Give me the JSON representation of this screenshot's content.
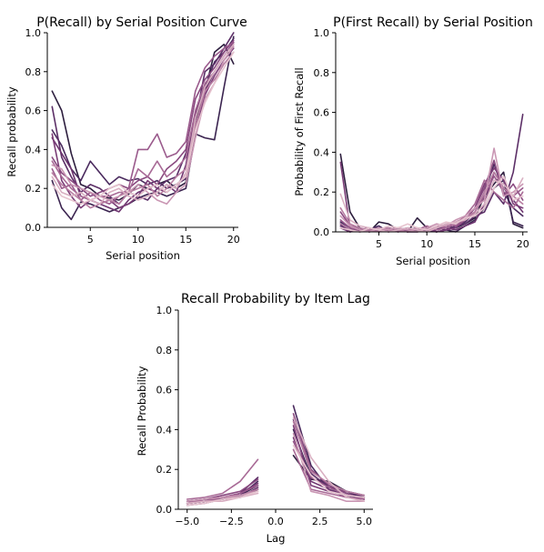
{
  "chart_data": [
    {
      "type": "line",
      "title": "P(Recall) by Serial Position Curve",
      "xlabel": "Serial position",
      "ylabel": "Recall probability",
      "xlim": [
        0.5,
        20.5
      ],
      "ylim": [
        0,
        1
      ],
      "xticks": [
        5,
        10,
        15,
        20
      ],
      "yticks": [
        0.0,
        0.2,
        0.4,
        0.6,
        0.8,
        1.0
      ],
      "x": [
        1,
        2,
        3,
        4,
        5,
        6,
        7,
        8,
        9,
        10,
        11,
        12,
        13,
        14,
        15,
        16,
        17,
        18,
        19,
        20
      ],
      "series": [
        {
          "color": "#2d1e3e",
          "values": [
            0.7,
            0.6,
            0.38,
            0.22,
            0.2,
            0.16,
            0.15,
            0.14,
            0.17,
            0.22,
            0.2,
            0.22,
            0.24,
            0.2,
            0.23,
            0.55,
            0.7,
            0.9,
            0.94,
            0.84
          ]
        },
        {
          "color": "#3b2450",
          "values": [
            0.24,
            0.1,
            0.04,
            0.13,
            0.12,
            0.1,
            0.08,
            0.1,
            0.12,
            0.15,
            0.17,
            0.18,
            0.16,
            0.18,
            0.2,
            0.48,
            0.46,
            0.45,
            0.72,
            0.98
          ]
        },
        {
          "color": "#4a2a5e",
          "values": [
            0.5,
            0.42,
            0.3,
            0.24,
            0.34,
            0.28,
            0.22,
            0.26,
            0.24,
            0.25,
            0.22,
            0.24,
            0.2,
            0.22,
            0.25,
            0.6,
            0.72,
            0.85,
            0.9,
            0.97
          ]
        },
        {
          "color": "#5c2f67",
          "values": [
            0.62,
            0.36,
            0.26,
            0.18,
            0.22,
            0.2,
            0.16,
            0.12,
            0.18,
            0.16,
            0.14,
            0.2,
            0.24,
            0.26,
            0.38,
            0.55,
            0.8,
            0.84,
            0.92,
            1.0
          ]
        },
        {
          "color": "#6e3570",
          "values": [
            0.46,
            0.38,
            0.3,
            0.16,
            0.14,
            0.12,
            0.1,
            0.08,
            0.14,
            0.18,
            0.2,
            0.18,
            0.22,
            0.18,
            0.32,
            0.58,
            0.7,
            0.8,
            0.88,
            0.95
          ]
        },
        {
          "color": "#7b3d77",
          "values": [
            0.48,
            0.24,
            0.16,
            0.1,
            0.14,
            0.12,
            0.14,
            0.1,
            0.12,
            0.16,
            0.24,
            0.2,
            0.18,
            0.22,
            0.26,
            0.5,
            0.68,
            0.78,
            0.86,
            0.92
          ]
        },
        {
          "color": "#8a4a80",
          "values": [
            0.36,
            0.28,
            0.24,
            0.2,
            0.16,
            0.18,
            0.2,
            0.22,
            0.2,
            0.24,
            0.26,
            0.22,
            0.3,
            0.34,
            0.4,
            0.66,
            0.76,
            0.82,
            0.9,
            0.96
          ]
        },
        {
          "color": "#9a5a8c",
          "values": [
            0.3,
            0.2,
            0.22,
            0.14,
            0.18,
            0.14,
            0.12,
            0.16,
            0.2,
            0.4,
            0.4,
            0.48,
            0.36,
            0.38,
            0.44,
            0.7,
            0.82,
            0.88,
            0.92,
            0.95
          ]
        },
        {
          "color": "#a86a96",
          "values": [
            0.34,
            0.26,
            0.2,
            0.16,
            0.14,
            0.16,
            0.16,
            0.18,
            0.18,
            0.3,
            0.26,
            0.34,
            0.26,
            0.3,
            0.36,
            0.6,
            0.74,
            0.8,
            0.88,
            0.94
          ]
        },
        {
          "color": "#b87ea2",
          "values": [
            0.28,
            0.22,
            0.18,
            0.14,
            0.1,
            0.12,
            0.14,
            0.12,
            0.18,
            0.2,
            0.22,
            0.16,
            0.2,
            0.26,
            0.3,
            0.52,
            0.7,
            0.76,
            0.84,
            0.9
          ]
        },
        {
          "color": "#c996b3",
          "values": [
            0.32,
            0.3,
            0.22,
            0.2,
            0.18,
            0.16,
            0.14,
            0.16,
            0.18,
            0.22,
            0.18,
            0.14,
            0.12,
            0.18,
            0.22,
            0.46,
            0.66,
            0.74,
            0.86,
            0.93
          ]
        },
        {
          "color": "#d9b0c2",
          "values": [
            0.26,
            0.18,
            0.16,
            0.18,
            0.14,
            0.12,
            0.18,
            0.2,
            0.16,
            0.14,
            0.16,
            0.18,
            0.22,
            0.2,
            0.28,
            0.56,
            0.72,
            0.8,
            0.88,
            0.94
          ]
        },
        {
          "color": "#e6c4cf",
          "values": [
            0.22,
            0.16,
            0.14,
            0.12,
            0.14,
            0.16,
            0.2,
            0.22,
            0.18,
            0.16,
            0.2,
            0.22,
            0.18,
            0.22,
            0.26,
            0.5,
            0.64,
            0.74,
            0.82,
            0.9
          ]
        }
      ]
    },
    {
      "type": "line",
      "title": "P(First Recall) by Serial Position",
      "xlabel": "Serial position",
      "ylabel": "Probability of First Recall",
      "xlim": [
        0.5,
        20.5
      ],
      "ylim": [
        0,
        1
      ],
      "xticks": [
        5,
        10,
        15,
        20
      ],
      "yticks": [
        0.0,
        0.2,
        0.4,
        0.6,
        0.8,
        1.0
      ],
      "x": [
        1,
        2,
        3,
        4,
        5,
        6,
        7,
        8,
        9,
        10,
        11,
        12,
        13,
        14,
        15,
        16,
        17,
        18,
        19,
        20
      ],
      "series": [
        {
          "color": "#2d1e3e",
          "values": [
            0.39,
            0.1,
            0.02,
            0.0,
            0.05,
            0.04,
            0.01,
            0.0,
            0.07,
            0.02,
            0.0,
            0.01,
            0.02,
            0.04,
            0.07,
            0.18,
            0.24,
            0.3,
            0.04,
            0.02
          ]
        },
        {
          "color": "#3b2450",
          "values": [
            0.04,
            0.0,
            0.01,
            0.02,
            0.0,
            0.01,
            0.02,
            0.0,
            0.01,
            0.0,
            0.02,
            0.01,
            0.0,
            0.03,
            0.06,
            0.12,
            0.22,
            0.26,
            0.05,
            0.03
          ]
        },
        {
          "color": "#4a2a5e",
          "values": [
            0.05,
            0.02,
            0.0,
            0.01,
            0.03,
            0.0,
            0.01,
            0.02,
            0.01,
            0.0,
            0.01,
            0.03,
            0.02,
            0.05,
            0.1,
            0.2,
            0.34,
            0.2,
            0.12,
            0.08
          ]
        },
        {
          "color": "#5c2f67",
          "values": [
            0.03,
            0.01,
            0.02,
            0.0,
            0.01,
            0.02,
            0.0,
            0.01,
            0.02,
            0.01,
            0.0,
            0.01,
            0.03,
            0.04,
            0.08,
            0.1,
            0.2,
            0.14,
            0.3,
            0.59
          ]
        },
        {
          "color": "#6e3570",
          "values": [
            0.02,
            0.0,
            0.01,
            0.01,
            0.0,
            0.01,
            0.01,
            0.0,
            0.0,
            0.01,
            0.01,
            0.02,
            0.01,
            0.03,
            0.05,
            0.14,
            0.3,
            0.22,
            0.16,
            0.1
          ]
        },
        {
          "color": "#7b3d77",
          "values": [
            0.35,
            0.02,
            0.0,
            0.01,
            0.02,
            0.0,
            0.01,
            0.01,
            0.0,
            0.02,
            0.0,
            0.01,
            0.02,
            0.06,
            0.12,
            0.24,
            0.32,
            0.26,
            0.14,
            0.12
          ]
        },
        {
          "color": "#8a4a80",
          "values": [
            0.1,
            0.03,
            0.02,
            0.0,
            0.01,
            0.02,
            0.01,
            0.0,
            0.02,
            0.01,
            0.03,
            0.02,
            0.04,
            0.06,
            0.12,
            0.22,
            0.36,
            0.18,
            0.24,
            0.16
          ]
        },
        {
          "color": "#9a5a8c",
          "values": [
            0.06,
            0.02,
            0.01,
            0.02,
            0.0,
            0.01,
            0.02,
            0.01,
            0.01,
            0.0,
            0.02,
            0.04,
            0.03,
            0.06,
            0.1,
            0.18,
            0.28,
            0.2,
            0.18,
            0.22
          ]
        },
        {
          "color": "#a86a96",
          "values": [
            0.04,
            0.01,
            0.0,
            0.01,
            0.02,
            0.01,
            0.0,
            0.02,
            0.01,
            0.03,
            0.01,
            0.02,
            0.04,
            0.08,
            0.14,
            0.26,
            0.2,
            0.16,
            0.12,
            0.2
          ]
        },
        {
          "color": "#b87ea2",
          "values": [
            0.12,
            0.04,
            0.02,
            0.01,
            0.0,
            0.02,
            0.01,
            0.0,
            0.02,
            0.01,
            0.02,
            0.03,
            0.05,
            0.07,
            0.1,
            0.2,
            0.3,
            0.22,
            0.18,
            0.14
          ]
        },
        {
          "color": "#c996b3",
          "values": [
            0.08,
            0.03,
            0.01,
            0.0,
            0.02,
            0.01,
            0.02,
            0.01,
            0.0,
            0.02,
            0.04,
            0.03,
            0.06,
            0.08,
            0.12,
            0.16,
            0.42,
            0.18,
            0.2,
            0.24
          ]
        },
        {
          "color": "#d9b0c2",
          "values": [
            0.19,
            0.06,
            0.03,
            0.02,
            0.01,
            0.0,
            0.01,
            0.02,
            0.01,
            0.0,
            0.02,
            0.04,
            0.05,
            0.06,
            0.09,
            0.14,
            0.26,
            0.24,
            0.18,
            0.27
          ]
        },
        {
          "color": "#e6c4cf",
          "values": [
            0.02,
            0.01,
            0.0,
            0.02,
            0.01,
            0.03,
            0.02,
            0.04,
            0.02,
            0.01,
            0.03,
            0.05,
            0.04,
            0.07,
            0.08,
            0.12,
            0.22,
            0.28,
            0.16,
            0.18
          ]
        }
      ]
    },
    {
      "type": "line",
      "title": "Recall Probability by Item Lag",
      "xlabel": "Lag",
      "ylabel": "Recall Probability",
      "xlim": [
        -5.5,
        5.5
      ],
      "ylim": [
        0,
        1
      ],
      "xticks": [
        -5.0,
        -2.5,
        0.0,
        2.5,
        5.0
      ],
      "xtick_labels": [
        "−5.0",
        "−2.5",
        "0.0",
        "2.5",
        "5.0"
      ],
      "yticks": [
        0.0,
        0.2,
        0.4,
        0.6,
        0.8,
        1.0
      ],
      "x_neg": [
        -5,
        -4,
        -3,
        -2,
        -1
      ],
      "x_pos": [
        1,
        2,
        3,
        4,
        5
      ],
      "series": [
        {
          "color": "#2d1e3e",
          "neg": [
            0.03,
            0.04,
            0.05,
            0.06,
            0.1
          ],
          "pos": [
            0.27,
            0.15,
            0.14,
            0.09,
            0.07
          ]
        },
        {
          "color": "#3b2450",
          "neg": [
            0.04,
            0.05,
            0.05,
            0.07,
            0.12
          ],
          "pos": [
            0.4,
            0.16,
            0.12,
            0.08,
            0.06
          ]
        },
        {
          "color": "#4a2a5e",
          "neg": [
            0.03,
            0.04,
            0.06,
            0.07,
            0.14
          ],
          "pos": [
            0.52,
            0.22,
            0.1,
            0.07,
            0.05
          ]
        },
        {
          "color": "#5c2f67",
          "neg": [
            0.04,
            0.04,
            0.05,
            0.08,
            0.16
          ],
          "pos": [
            0.45,
            0.18,
            0.11,
            0.09,
            0.06
          ]
        },
        {
          "color": "#6e3570",
          "neg": [
            0.02,
            0.03,
            0.05,
            0.06,
            0.11
          ],
          "pos": [
            0.36,
            0.14,
            0.1,
            0.06,
            0.05
          ]
        },
        {
          "color": "#7b3d77",
          "neg": [
            0.03,
            0.04,
            0.06,
            0.08,
            0.13
          ],
          "pos": [
            0.42,
            0.12,
            0.09,
            0.07,
            0.06
          ]
        },
        {
          "color": "#8a4a80",
          "neg": [
            0.04,
            0.05,
            0.07,
            0.09,
            0.15
          ],
          "pos": [
            0.48,
            0.2,
            0.12,
            0.08,
            0.05
          ]
        },
        {
          "color": "#9a5a8c",
          "neg": [
            0.03,
            0.05,
            0.06,
            0.08,
            0.12
          ],
          "pos": [
            0.34,
            0.16,
            0.11,
            0.07,
            0.06
          ]
        },
        {
          "color": "#a86a96",
          "neg": [
            0.05,
            0.06,
            0.08,
            0.14,
            0.25
          ],
          "pos": [
            0.3,
            0.1,
            0.08,
            0.06,
            0.05
          ]
        },
        {
          "color": "#b87ea2",
          "neg": [
            0.03,
            0.04,
            0.05,
            0.07,
            0.1
          ],
          "pos": [
            0.44,
            0.19,
            0.13,
            0.09,
            0.07
          ]
        },
        {
          "color": "#c996b3",
          "neg": [
            0.04,
            0.05,
            0.06,
            0.07,
            0.09
          ],
          "pos": [
            0.38,
            0.09,
            0.07,
            0.04,
            0.04
          ]
        },
        {
          "color": "#d9b0c2",
          "neg": [
            0.03,
            0.04,
            0.04,
            0.06,
            0.08
          ],
          "pos": [
            0.46,
            0.26,
            0.14,
            0.06,
            0.04
          ]
        },
        {
          "color": "#e6c4cf",
          "neg": [
            0.02,
            0.03,
            0.05,
            0.06,
            0.09
          ],
          "pos": [
            0.32,
            0.17,
            0.09,
            0.07,
            0.06
          ]
        }
      ]
    }
  ]
}
